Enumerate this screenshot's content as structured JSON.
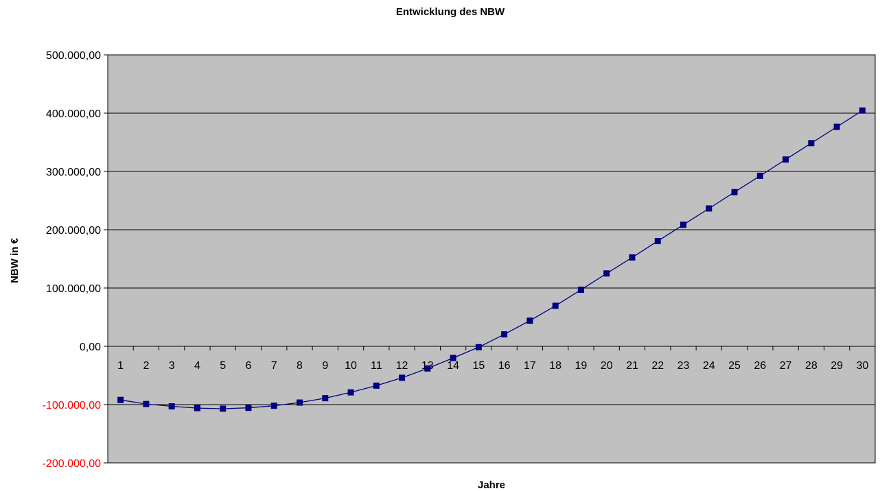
{
  "chart_data": {
    "type": "line",
    "title": "Entwicklung des NBW",
    "xlabel": "Jahre",
    "ylabel": "NBW in €",
    "ylim": [
      -200000,
      500000
    ],
    "yticks": [
      {
        "value": 500000,
        "label": "500.000,00"
      },
      {
        "value": 400000,
        "label": "400.000,00"
      },
      {
        "value": 300000,
        "label": "300.000,00"
      },
      {
        "value": 200000,
        "label": "200.000,00"
      },
      {
        "value": 100000,
        "label": "100.000,00"
      },
      {
        "value": 0,
        "label": "0,00"
      },
      {
        "value": -100000,
        "label": "-100.000,00"
      },
      {
        "value": -200000,
        "label": "-200.000,00"
      }
    ],
    "negative_tick_color": "#ff0000",
    "plot_background": "#c0c0c0",
    "series_color": "#000080",
    "grid": true,
    "categories": [
      "1",
      "2",
      "3",
      "4",
      "5",
      "6",
      "7",
      "8",
      "9",
      "10",
      "11",
      "12",
      "13",
      "14",
      "15",
      "16",
      "17",
      "18",
      "19",
      "20",
      "21",
      "22",
      "23",
      "24",
      "25",
      "26",
      "27",
      "28",
      "29",
      "30"
    ],
    "series": [
      {
        "values": [
          -92000,
          -99000,
          -103000,
          -106000,
          -107000,
          -105500,
          -102000,
          -96500,
          -89000,
          -79000,
          -67500,
          -54000,
          -38000,
          -20000,
          -1500,
          20500,
          44000,
          69500,
          97000,
          125000,
          152500,
          180500,
          208500,
          236500,
          264500,
          292500,
          320500,
          348500,
          376500,
          404500
        ],
        "marker": "square"
      }
    ]
  }
}
